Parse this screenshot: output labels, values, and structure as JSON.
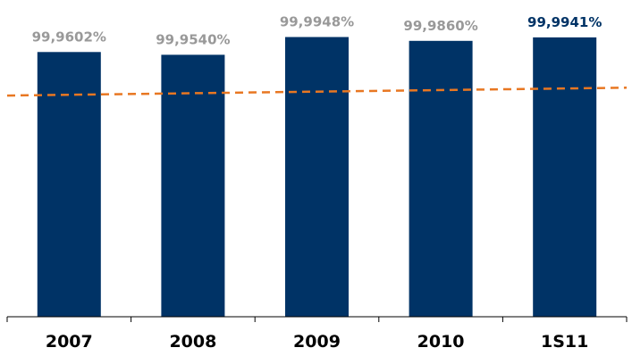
{
  "chart_data": {
    "type": "bar",
    "categories": [
      "2007",
      "2008",
      "2009",
      "2010",
      "1S11"
    ],
    "value_labels": [
      "99,9602%",
      "99,9540%",
      "99,9948%",
      "99,9860%",
      "99,9941%"
    ],
    "values": [
      99.9602,
      99.954,
      99.9948,
      99.986,
      99.9941
    ],
    "reference_line": {
      "style": "dashed",
      "values": [
        99.86,
        99.878
      ],
      "color": "#e87722"
    },
    "ylim": [
      99.35,
      100.0
    ],
    "title": "",
    "xlabel": "",
    "ylabel": "",
    "grid": false,
    "legend": "none"
  },
  "colors": {
    "bar": "#003366",
    "value_label_default": "#999999",
    "value_label_highlight": "#003366",
    "reference_line": "#e87722",
    "axis": "#000000"
  }
}
